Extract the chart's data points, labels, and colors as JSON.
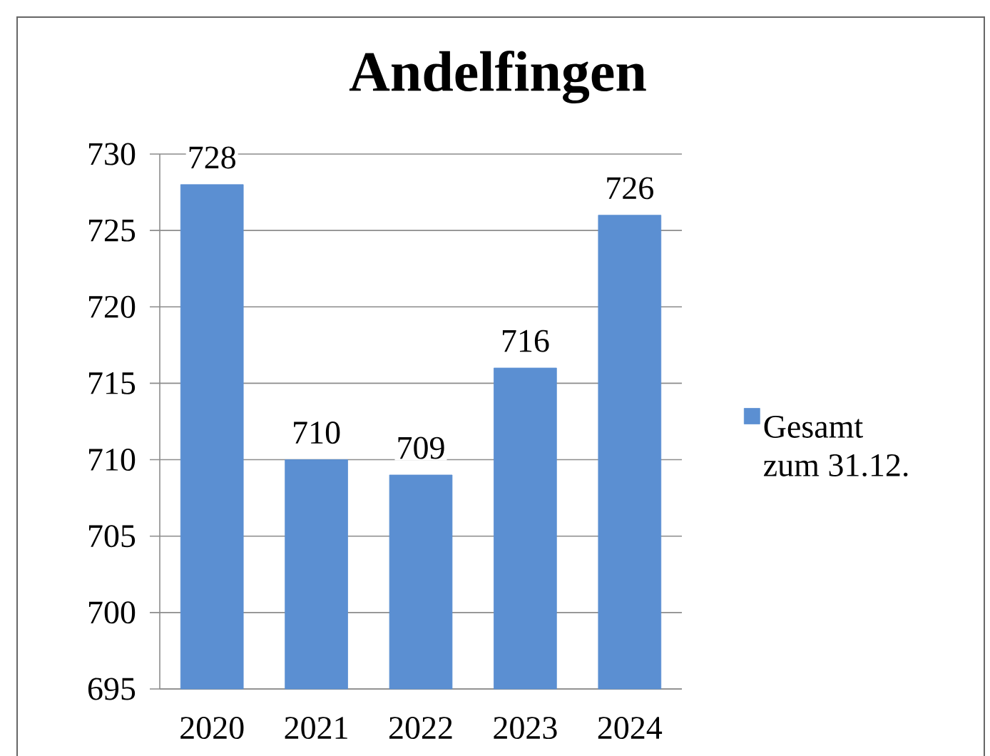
{
  "chart_data": {
    "type": "bar",
    "title": "Andelfingen",
    "categories": [
      "2020",
      "2021",
      "2022",
      "2023",
      "2024"
    ],
    "series": [
      {
        "name": "Gesamt zum 31.12.",
        "color": "#5b8fd2",
        "values": [
          728,
          710,
          709,
          716,
          726
        ]
      }
    ],
    "ylim": [
      695,
      730
    ],
    "yticks": [
      695,
      700,
      705,
      710,
      715,
      720,
      725,
      730
    ],
    "grid": "y",
    "legend": "right",
    "data_labels": true
  }
}
